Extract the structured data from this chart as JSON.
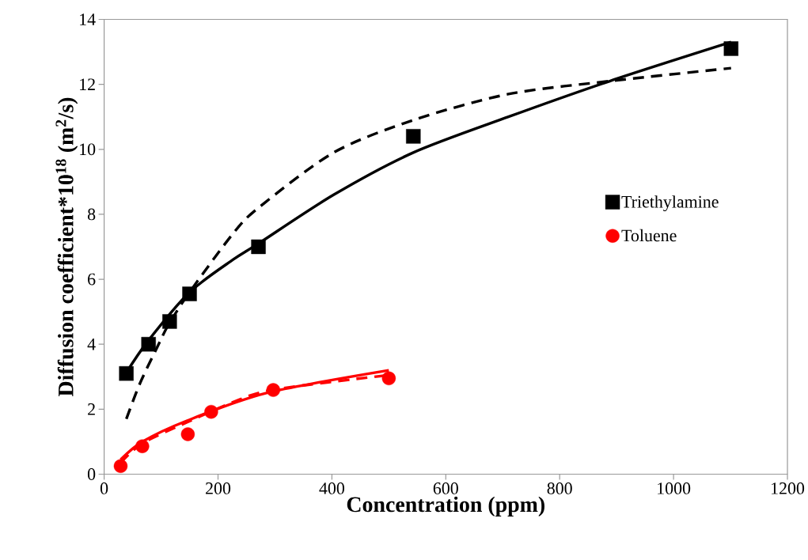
{
  "chart_data": {
    "type": "scatter",
    "xlabel": "Concentration (ppm)",
    "ylabel": "Diffusion coefficient*10$^{18}$ (m$^{2}$/s)",
    "xlim": [
      0,
      1200
    ],
    "ylim": [
      0,
      14
    ],
    "xticks": [
      0,
      200,
      400,
      600,
      800,
      1000,
      1200
    ],
    "yticks": [
      0,
      2,
      4,
      6,
      8,
      10,
      12,
      14
    ],
    "grid": false,
    "legend": "right",
    "series": [
      {
        "name": "Triethylamine",
        "marker": "square",
        "color": "#000000",
        "x": [
          39,
          78,
          115,
          150,
          271,
          543,
          1101
        ],
        "values": [
          3.1,
          4.0,
          4.7,
          5.55,
          7.0,
          10.4,
          13.1
        ]
      },
      {
        "name": "Toluene",
        "marker": "circle",
        "color": "#ff0000",
        "x": [
          29,
          67,
          147,
          188,
          297,
          500
        ],
        "values": [
          0.25,
          0.86,
          1.23,
          1.92,
          2.59,
          2.95
        ]
      },
      {
        "type": "line",
        "line_style": "solid",
        "color": "#000000",
        "x": [
          38,
          77,
          150,
          226,
          271,
          403,
          543,
          710,
          888,
          1101
        ],
        "values": [
          3.1,
          4.1,
          5.6,
          6.6,
          7.1,
          8.6,
          9.9,
          11.0,
          12.1,
          13.3
        ]
      },
      {
        "type": "line",
        "line_style": "dashed",
        "color": "#000000",
        "x": [
          39,
          63,
          93,
          113,
          150,
          226,
          271,
          403,
          543,
          710,
          888,
          1101
        ],
        "values": [
          1.7,
          2.8,
          3.9,
          4.6,
          5.6,
          7.4,
          8.2,
          9.9,
          10.9,
          11.7,
          12.1,
          12.5
        ]
      },
      {
        "type": "line",
        "line_style": "solid",
        "color": "#ff0000",
        "x": [
          29,
          67,
          146,
          285,
          500
        ],
        "values": [
          0.45,
          1.0,
          1.65,
          2.5,
          3.2
        ]
      },
      {
        "type": "line",
        "line_style": "dashed",
        "color": "#ff0000",
        "x": [
          29,
          67,
          146,
          224,
          297,
          500
        ],
        "values": [
          0.35,
          0.95,
          1.6,
          2.2,
          2.6,
          3.05
        ]
      }
    ]
  }
}
